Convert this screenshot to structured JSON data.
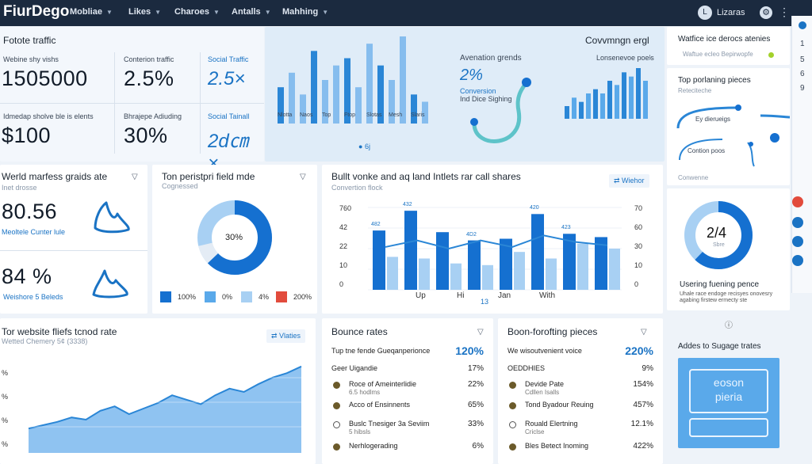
{
  "nav": {
    "brand": "FiurDego",
    "menu": [
      "Mobliae",
      "Likes",
      "Charoes",
      "Antalls",
      "Mahhing"
    ],
    "user_initial": "L",
    "user_name": "Lizaras",
    "gear_glyph": "⚙",
    "more_glyph": "⋮"
  },
  "traffic": {
    "title": "Fotote traffic",
    "kpis": [
      {
        "label": "Webine shy vishs",
        "value": "1505000"
      },
      {
        "label": "Conterion traffic",
        "value": "2.5%"
      },
      {
        "label": "Social Traffic",
        "value": "2.5×"
      },
      {
        "label": "Idmedap sholve ble is elents",
        "value": "$100"
      },
      {
        "label": "Bhrajepe Adiuding",
        "value": "30%"
      },
      {
        "label": "Social Tainall",
        "value": "2d㎝ ×"
      }
    ]
  },
  "top_bars": {
    "title": "Covvmngn ergl",
    "x_labels": [
      "Nlotta",
      "Naos",
      "Top",
      "Ftop",
      "Slotas",
      "Mesh",
      "Slaris"
    ],
    "footer": "6j",
    "values": [
      5,
      7,
      4,
      10,
      6,
      8,
      9,
      5,
      11,
      8,
      6,
      12,
      4,
      3
    ]
  },
  "awareness": {
    "title": "Avenation grends",
    "value": "2%",
    "line1": "Conversion",
    "line2": "Ind Dice Sighing",
    "bars_title": "Lonsenevoe poe's",
    "bars": [
      3,
      5,
      4,
      6,
      7,
      6,
      9,
      8,
      11,
      10,
      12,
      9
    ]
  },
  "right_top": {
    "title": "Watfice ice derocs atenies",
    "sub": "Waftue ecleo Bepirwopfe",
    "pieces_title": "Top porlaning pieces",
    "pieces_sub": "Reteciteche",
    "pieces_lbl1": "Ey dierueigs",
    "pieces_lbl2": "Contion poos",
    "pieces_lbl3": "Conwenne",
    "side_nums": [
      "1",
      "5",
      "6",
      "9"
    ]
  },
  "world": {
    "title": "Werld marfess graids ate",
    "sub": "Inet drosse",
    "v1": "80.56",
    "l1": "Meoltele Cunter lule",
    "v2": "84 %",
    "l2": "Weishore 5 Beleds"
  },
  "donut": {
    "title": "Ton peristpri field mde",
    "sub": "Cognessed",
    "center": "30%",
    "legend": [
      "100%",
      "0%",
      "4%",
      "200%"
    ],
    "colors": [
      "#1570d0",
      "#5aa9ea",
      "#a8d0f3",
      "#e24b3c"
    ]
  },
  "combo": {
    "title": "Bullt vonke and aq land Intlets rar call shares",
    "sub": "Convertion flock",
    "tag": "Wiehor",
    "left_ticks": [
      "760",
      "42",
      "22",
      "10",
      "0"
    ],
    "right_ticks": [
      "70",
      "60",
      "30",
      "10",
      "0"
    ],
    "x_labels": [
      "Up",
      "Hi",
      "Jan",
      "With"
    ],
    "x_footer": "13",
    "dark_labels": [
      "482",
      "432",
      "",
      "4D2",
      "",
      "420",
      "423",
      ""
    ],
    "dark": [
      360,
      480,
      350,
      300,
      310,
      460,
      340,
      320
    ],
    "light": [
      200,
      190,
      160,
      150,
      230,
      190,
      280,
      250
    ],
    "line": [
      260,
      300,
      250,
      300,
      260,
      330,
      290,
      270
    ]
  },
  "site_trend": {
    "title": "Tor website fliefs tcnod rate",
    "sub": "Wetted Chemery 5¢ (3338)",
    "tag": "Vlaties",
    "y_ticks": [
      "%",
      "%",
      "%",
      "%"
    ],
    "values": [
      22,
      25,
      28,
      32,
      30,
      38,
      42,
      35,
      40,
      45,
      52,
      48,
      44,
      52,
      58,
      55,
      62,
      68,
      72,
      78
    ]
  },
  "bounce": {
    "title": "Bounce rates",
    "rows": [
      {
        "label": "Tup tne fende Gueqanperionce",
        "value": "120%"
      },
      {
        "label": "Geer Uigandie",
        "value": "17%"
      },
      {
        "label": "Roce of Ameinterlidie",
        "sub": "6.5 hodlms",
        "value": "22%"
      },
      {
        "label": "Acco of Ensinnents",
        "value": "65%"
      },
      {
        "label": "Buslc Tnesiger 3a Seviim",
        "sub": "5 hibsls",
        "value": "33%"
      },
      {
        "label": "Nerhlogerading",
        "value": "6%"
      }
    ]
  },
  "boosting": {
    "title": "Boon-forofting pieces",
    "rows": [
      {
        "label": "We wisoutvenient voice",
        "value": "220%"
      },
      {
        "label": "OEDDHIES",
        "value": "9%"
      },
      {
        "label": "Devide Pate",
        "sub": "Cdllen Isalls",
        "value": "154%"
      },
      {
        "label": "Tond Byadour Reuing",
        "value": "457%"
      },
      {
        "label": "Rouald Elertning",
        "sub": "Criclse",
        "value": "12.1%"
      },
      {
        "label": "Bles Betect Inoming",
        "value": "422%"
      }
    ]
  },
  "usering": {
    "center": "2/4",
    "center_sub": "Sbre",
    "title": "Usering fuening pence",
    "desc": "Uhale race endoge recisyes onovesry agabing firstew ermecty ste",
    "info_glyph": "ⓘ",
    "percent": 62
  },
  "storage": {
    "title": "Addes to Sugage trates",
    "box_l1": "eoson",
    "box_l2": "pieria"
  }
}
